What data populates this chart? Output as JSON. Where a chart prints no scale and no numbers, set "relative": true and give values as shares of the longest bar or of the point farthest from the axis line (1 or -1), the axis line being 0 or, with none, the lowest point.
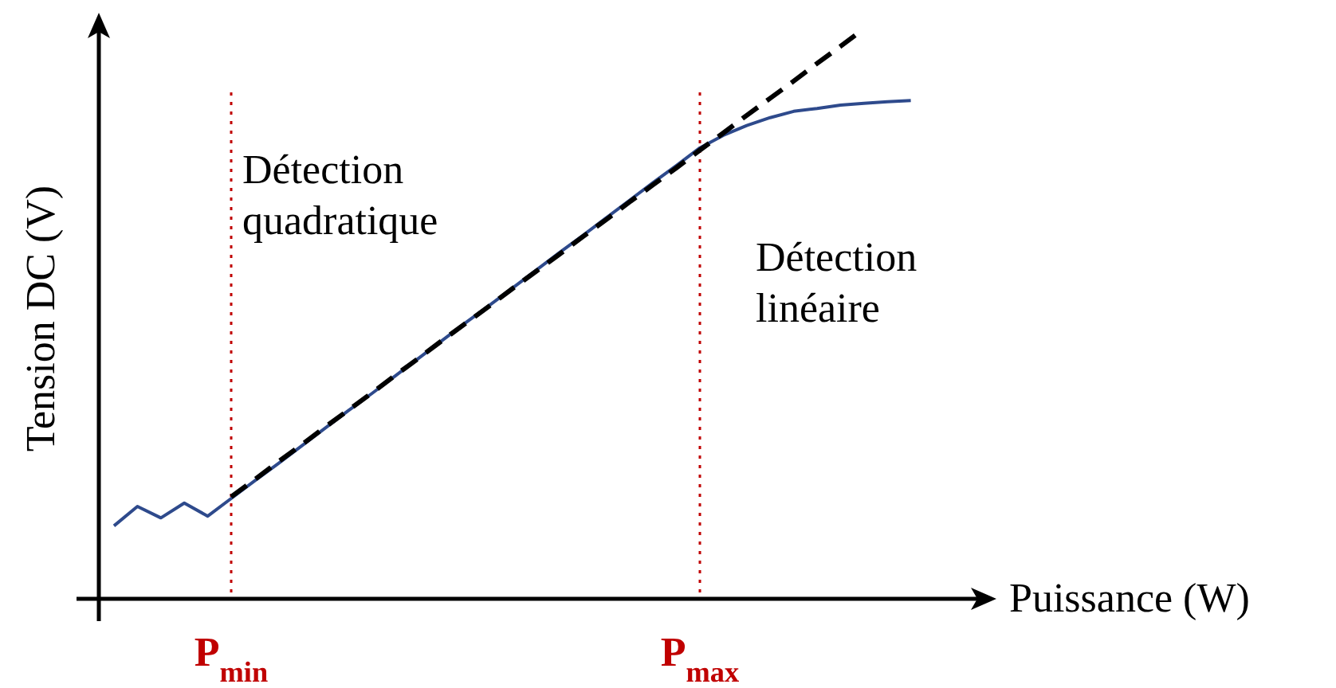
{
  "chart_data": {
    "type": "line",
    "relative": true,
    "xlabel": "Puissance (W)",
    "ylabel": "Tension DC (V)",
    "tick_labels": "x",
    "categories": [
      null,
      null,
      null,
      null,
      null,
      "P$_{min}$",
      null,
      null,
      null,
      null,
      null,
      null,
      null,
      null,
      null,
      null,
      null,
      null,
      null,
      null,
      null,
      null,
      null,
      null,
      null,
      "P$_{max}$",
      null,
      null,
      null,
      null,
      null,
      null,
      null,
      null,
      null
    ],
    "series": [
      {
        "color": "#2e4a8c",
        "line_style": "solid",
        "values": [
          0.128,
          0.162,
          0.142,
          0.168,
          0.145,
          0.176,
          0.207,
          0.237,
          0.268,
          0.299,
          0.33,
          0.36,
          0.391,
          0.422,
          0.453,
          0.484,
          0.514,
          0.545,
          0.576,
          0.607,
          0.637,
          0.668,
          0.699,
          0.73,
          0.76,
          0.791,
          0.813,
          0.83,
          0.844,
          0.855,
          0.86,
          0.866,
          0.869,
          0.872,
          0.874
        ]
      },
      {
        "color": "#000000",
        "line_style": "dashed",
        "values": [
          null,
          null,
          null,
          null,
          null,
          0.179,
          0.209,
          0.24,
          0.27,
          0.301,
          0.331,
          0.361,
          0.392,
          0.422,
          0.453,
          0.483,
          0.513,
          0.544,
          0.574,
          0.604,
          0.635,
          0.665,
          0.696,
          0.726,
          0.756,
          0.787,
          0.817,
          0.848,
          0.878,
          0.908,
          0.939,
          0.969,
          1.0,
          null,
          null
        ]
      }
    ],
    "ref_lines": [
      {
        "axis": "x",
        "value": "P$_{min}$",
        "color": "#c00000",
        "line_style": "dotted"
      },
      {
        "axis": "x",
        "value": "P$_{max}$",
        "color": "#c00000",
        "line_style": "dotted"
      }
    ],
    "annotations": [
      "Détection\nquadratique",
      "Détection\nlinéaire"
    ]
  }
}
